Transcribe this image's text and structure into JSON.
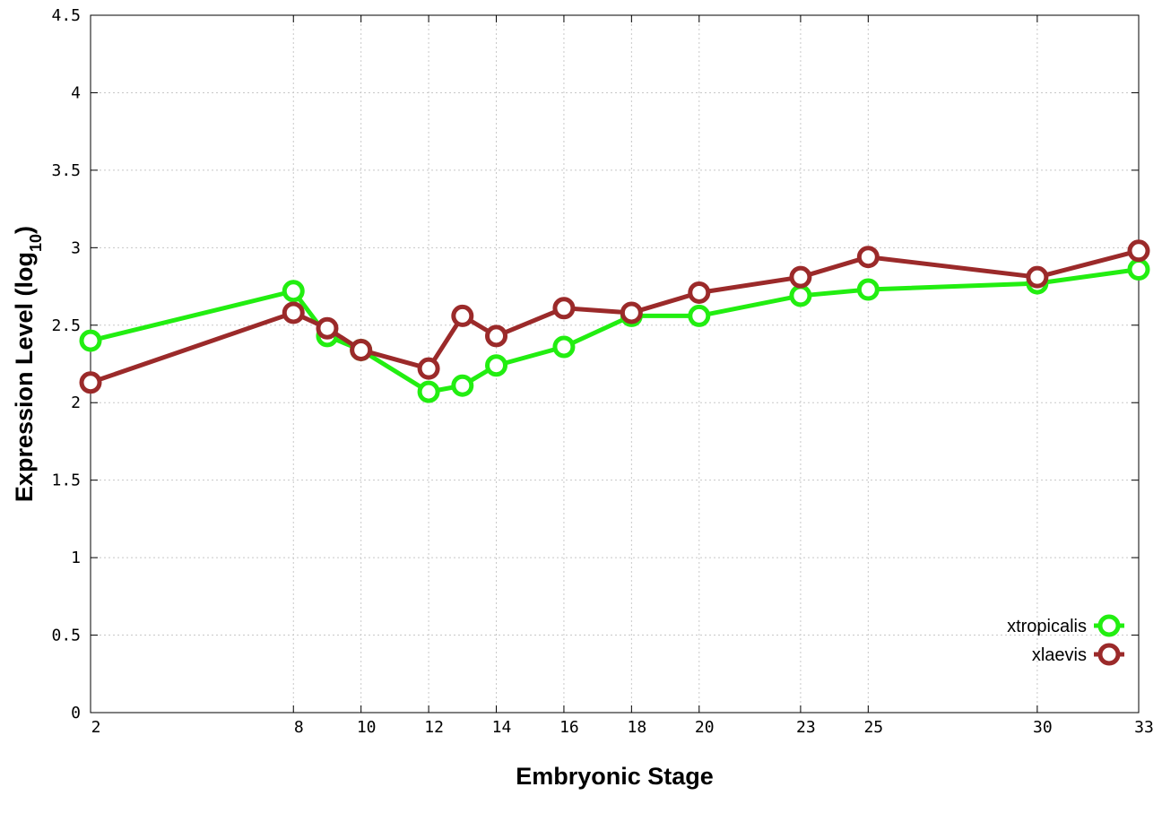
{
  "chart_data": {
    "type": "line",
    "title": "",
    "xlabel": "Embryonic Stage",
    "ylabel": "Expression Level (log",
    "ylabel_subscript": "10",
    "ylabel_suffix": ")",
    "xlim": [
      2,
      33
    ],
    "ylim": [
      0,
      4.5
    ],
    "x_ticks": [
      2,
      8,
      10,
      12,
      14,
      16,
      18,
      20,
      23,
      25,
      30,
      33
    ],
    "y_ticks": [
      0,
      0.5,
      1,
      1.5,
      2,
      2.5,
      3,
      3.5,
      4,
      4.5
    ],
    "grid": true,
    "legend_position": "bottom-right",
    "x": [
      2,
      8,
      9,
      10,
      12,
      13,
      14,
      16,
      18,
      20,
      23,
      25,
      30,
      33
    ],
    "series": [
      {
        "name": "xtropicalis",
        "color": "#22ee11",
        "values": [
          2.4,
          2.72,
          2.43,
          2.34,
          2.07,
          2.11,
          2.24,
          2.36,
          2.56,
          2.56,
          2.69,
          2.73,
          2.77,
          2.86
        ]
      },
      {
        "name": "xlaevis",
        "color": "#9b2a2a",
        "values": [
          2.13,
          2.58,
          2.48,
          2.34,
          2.22,
          2.56,
          2.43,
          2.61,
          2.58,
          2.71,
          2.81,
          2.94,
          2.81,
          2.98
        ]
      }
    ]
  }
}
